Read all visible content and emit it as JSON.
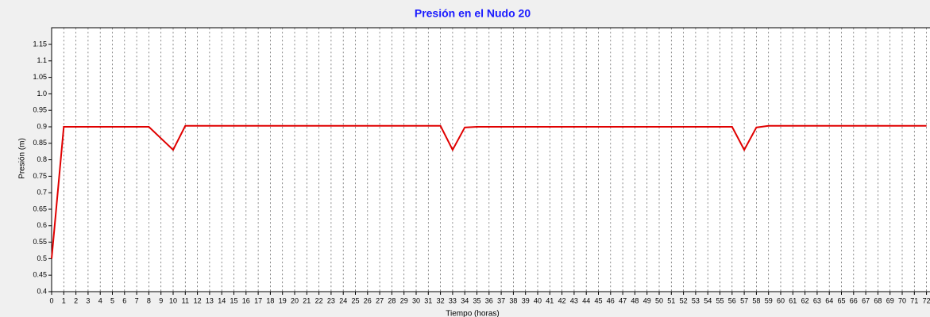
{
  "chart_data": {
    "type": "line",
    "title": "Presión en el Nudo 20",
    "xlabel": "Tiempo (horas)",
    "ylabel": "Presión (m)",
    "x": [
      0,
      1,
      2,
      3,
      4,
      5,
      6,
      7,
      8,
      9,
      10,
      11,
      12,
      13,
      14,
      15,
      16,
      17,
      18,
      19,
      20,
      21,
      22,
      23,
      24,
      25,
      26,
      27,
      28,
      29,
      30,
      31,
      32,
      33,
      34,
      35,
      36,
      37,
      38,
      39,
      40,
      41,
      42,
      43,
      44,
      45,
      46,
      47,
      48,
      49,
      50,
      51,
      52,
      53,
      54,
      55,
      56,
      57,
      58,
      59,
      60,
      61,
      62,
      63,
      64,
      65,
      66,
      67,
      68,
      69,
      70,
      71,
      72
    ],
    "series": [
      {
        "name": "Presión",
        "color": "#e00000",
        "values": [
          0.5,
          0.9,
          0.9,
          0.9,
          0.9,
          0.9,
          0.9,
          0.9,
          0.9,
          0.865,
          0.83,
          0.903,
          0.903,
          0.903,
          0.903,
          0.903,
          0.903,
          0.903,
          0.903,
          0.903,
          0.903,
          0.903,
          0.903,
          0.903,
          0.903,
          0.903,
          0.903,
          0.903,
          0.903,
          0.903,
          0.903,
          0.903,
          0.903,
          0.83,
          0.898,
          0.9,
          0.9,
          0.9,
          0.9,
          0.9,
          0.9,
          0.9,
          0.9,
          0.9,
          0.9,
          0.9,
          0.9,
          0.9,
          0.9,
          0.9,
          0.9,
          0.9,
          0.9,
          0.9,
          0.9,
          0.9,
          0.9,
          0.83,
          0.898,
          0.903,
          0.903,
          0.903,
          0.903,
          0.903,
          0.903,
          0.903,
          0.903,
          0.903,
          0.903,
          0.903,
          0.903,
          0.903,
          0.903
        ]
      }
    ],
    "xlim": [
      0,
      72
    ],
    "ylim": [
      0.4,
      1.2
    ],
    "xticks": [
      0,
      1,
      2,
      3,
      4,
      5,
      6,
      7,
      8,
      9,
      10,
      11,
      12,
      13,
      14,
      15,
      16,
      17,
      18,
      19,
      20,
      21,
      22,
      23,
      24,
      25,
      26,
      27,
      28,
      29,
      30,
      31,
      32,
      33,
      34,
      35,
      36,
      37,
      38,
      39,
      40,
      41,
      42,
      43,
      44,
      45,
      46,
      47,
      48,
      49,
      50,
      51,
      52,
      53,
      54,
      55,
      56,
      57,
      58,
      59,
      60,
      61,
      62,
      63,
      64,
      65,
      66,
      67,
      68,
      69,
      70,
      71,
      72
    ],
    "yticks": [
      0.4,
      0.45,
      0.5,
      0.55,
      0.6,
      0.65,
      0.7,
      0.75,
      0.8,
      0.85,
      0.9,
      0.95,
      {
        "value": 1,
        "label": "1.0"
      },
      1.05,
      1.1,
      1.15
    ],
    "grid": "x"
  }
}
